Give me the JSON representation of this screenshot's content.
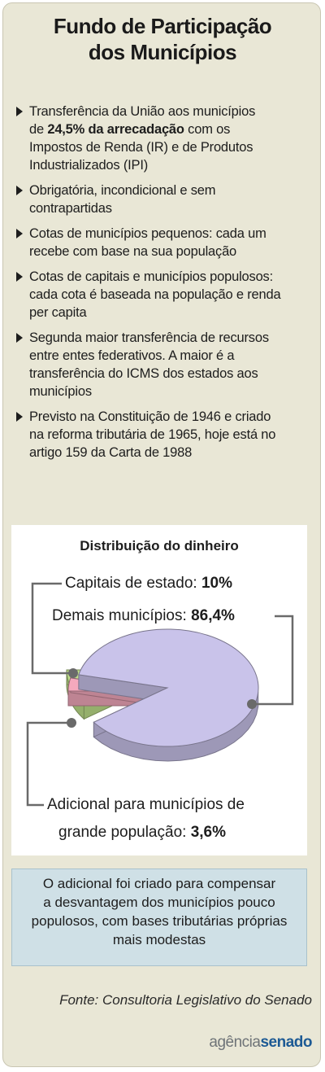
{
  "title_line1": "Fundo de Participação",
  "title_line2": "dos Municípios",
  "bullets": [
    {
      "lines": [
        [
          {
            "t": "Transferência da União aos municípios",
            "b": false
          }
        ],
        [
          {
            "t": "de ",
            "b": false
          },
          {
            "t": "24,5% da arrecadação",
            "b": true
          },
          {
            "t": " com os",
            "b": false
          }
        ],
        [
          {
            "t": "Impostos de Renda (IR) e de Produtos",
            "b": false
          }
        ],
        [
          {
            "t": "Industrializados (IPI)",
            "b": false
          }
        ]
      ]
    },
    {
      "lines": [
        [
          {
            "t": "Obrigatória, incondicional e sem",
            "b": false
          }
        ],
        [
          {
            "t": "contrapartidas",
            "b": false
          }
        ]
      ]
    },
    {
      "lines": [
        [
          {
            "t": "Cotas de municípios pequenos: cada um",
            "b": false
          }
        ],
        [
          {
            "t": "recebe com base na sua população",
            "b": false
          }
        ]
      ]
    },
    {
      "lines": [
        [
          {
            "t": "Cotas de capitais e municípios populosos:",
            "b": false
          }
        ],
        [
          {
            "t": "cada cota é baseada na população e renda",
            "b": false
          }
        ],
        [
          {
            "t": "per capita",
            "b": false
          }
        ]
      ]
    },
    {
      "lines": [
        [
          {
            "t": "Segunda maior transferência de recursos",
            "b": false
          }
        ],
        [
          {
            "t": "entre entes federativos. A maior é a",
            "b": false
          }
        ],
        [
          {
            "t": "transferência do ICMS dos estados aos",
            "b": false
          }
        ],
        [
          {
            "t": "municípios",
            "b": false
          }
        ]
      ]
    },
    {
      "lines": [
        [
          {
            "t": "Previsto na Constituição de 1946 e criado",
            "b": false
          }
        ],
        [
          {
            "t": "na reforma tributária de 1965, hoje está no",
            "b": false
          }
        ],
        [
          {
            "t": "artigo 159 da Carta de 1988",
            "b": false
          }
        ]
      ]
    }
  ],
  "chart_data": {
    "type": "pie",
    "title": "Distribuição do dinheiro",
    "slices": [
      {
        "name": "Capitais de estado",
        "value": 10,
        "value_label": "10%",
        "color": "#bfe08a"
      },
      {
        "name": "Demais municípios",
        "value": 86.4,
        "value_label": "86,4%",
        "color": "#c9c3ea"
      },
      {
        "name": "Adicional para municípios de grande população",
        "value": 3.6,
        "value_label": "3,6%",
        "color": "#f4a9bd"
      }
    ],
    "labels": {
      "capitais_text": "Capitais de estado:",
      "capitais_value": "10%",
      "demais_text": "Demais municípios:",
      "demais_value": "86,4%",
      "adicional_line1": "Adicional para municípios de",
      "adicional_line2_text": "grande população:",
      "adicional_value": "3,6%"
    },
    "legend": "none",
    "style": "3d-exploded"
  },
  "note_lines": [
    "O adicional foi criado para compensar",
    "a desvantagem dos municípios pouco",
    "populosos, com bases tributárias próprias",
    "mais modestas"
  ],
  "source": "Fonte: Consultoria Legislativo do Senado",
  "logo": {
    "part1": "agência",
    "part2": "senado"
  },
  "colors": {
    "card_bg": "#e9e7d6",
    "note_bg": "#cfe0e6",
    "pie_main": "#c9c3ea",
    "pie_capitais": "#bfe08a",
    "pie_adicional": "#f4a9bd",
    "leader_line": "#6a6a6a",
    "logo_blue": "#1d5a94"
  }
}
